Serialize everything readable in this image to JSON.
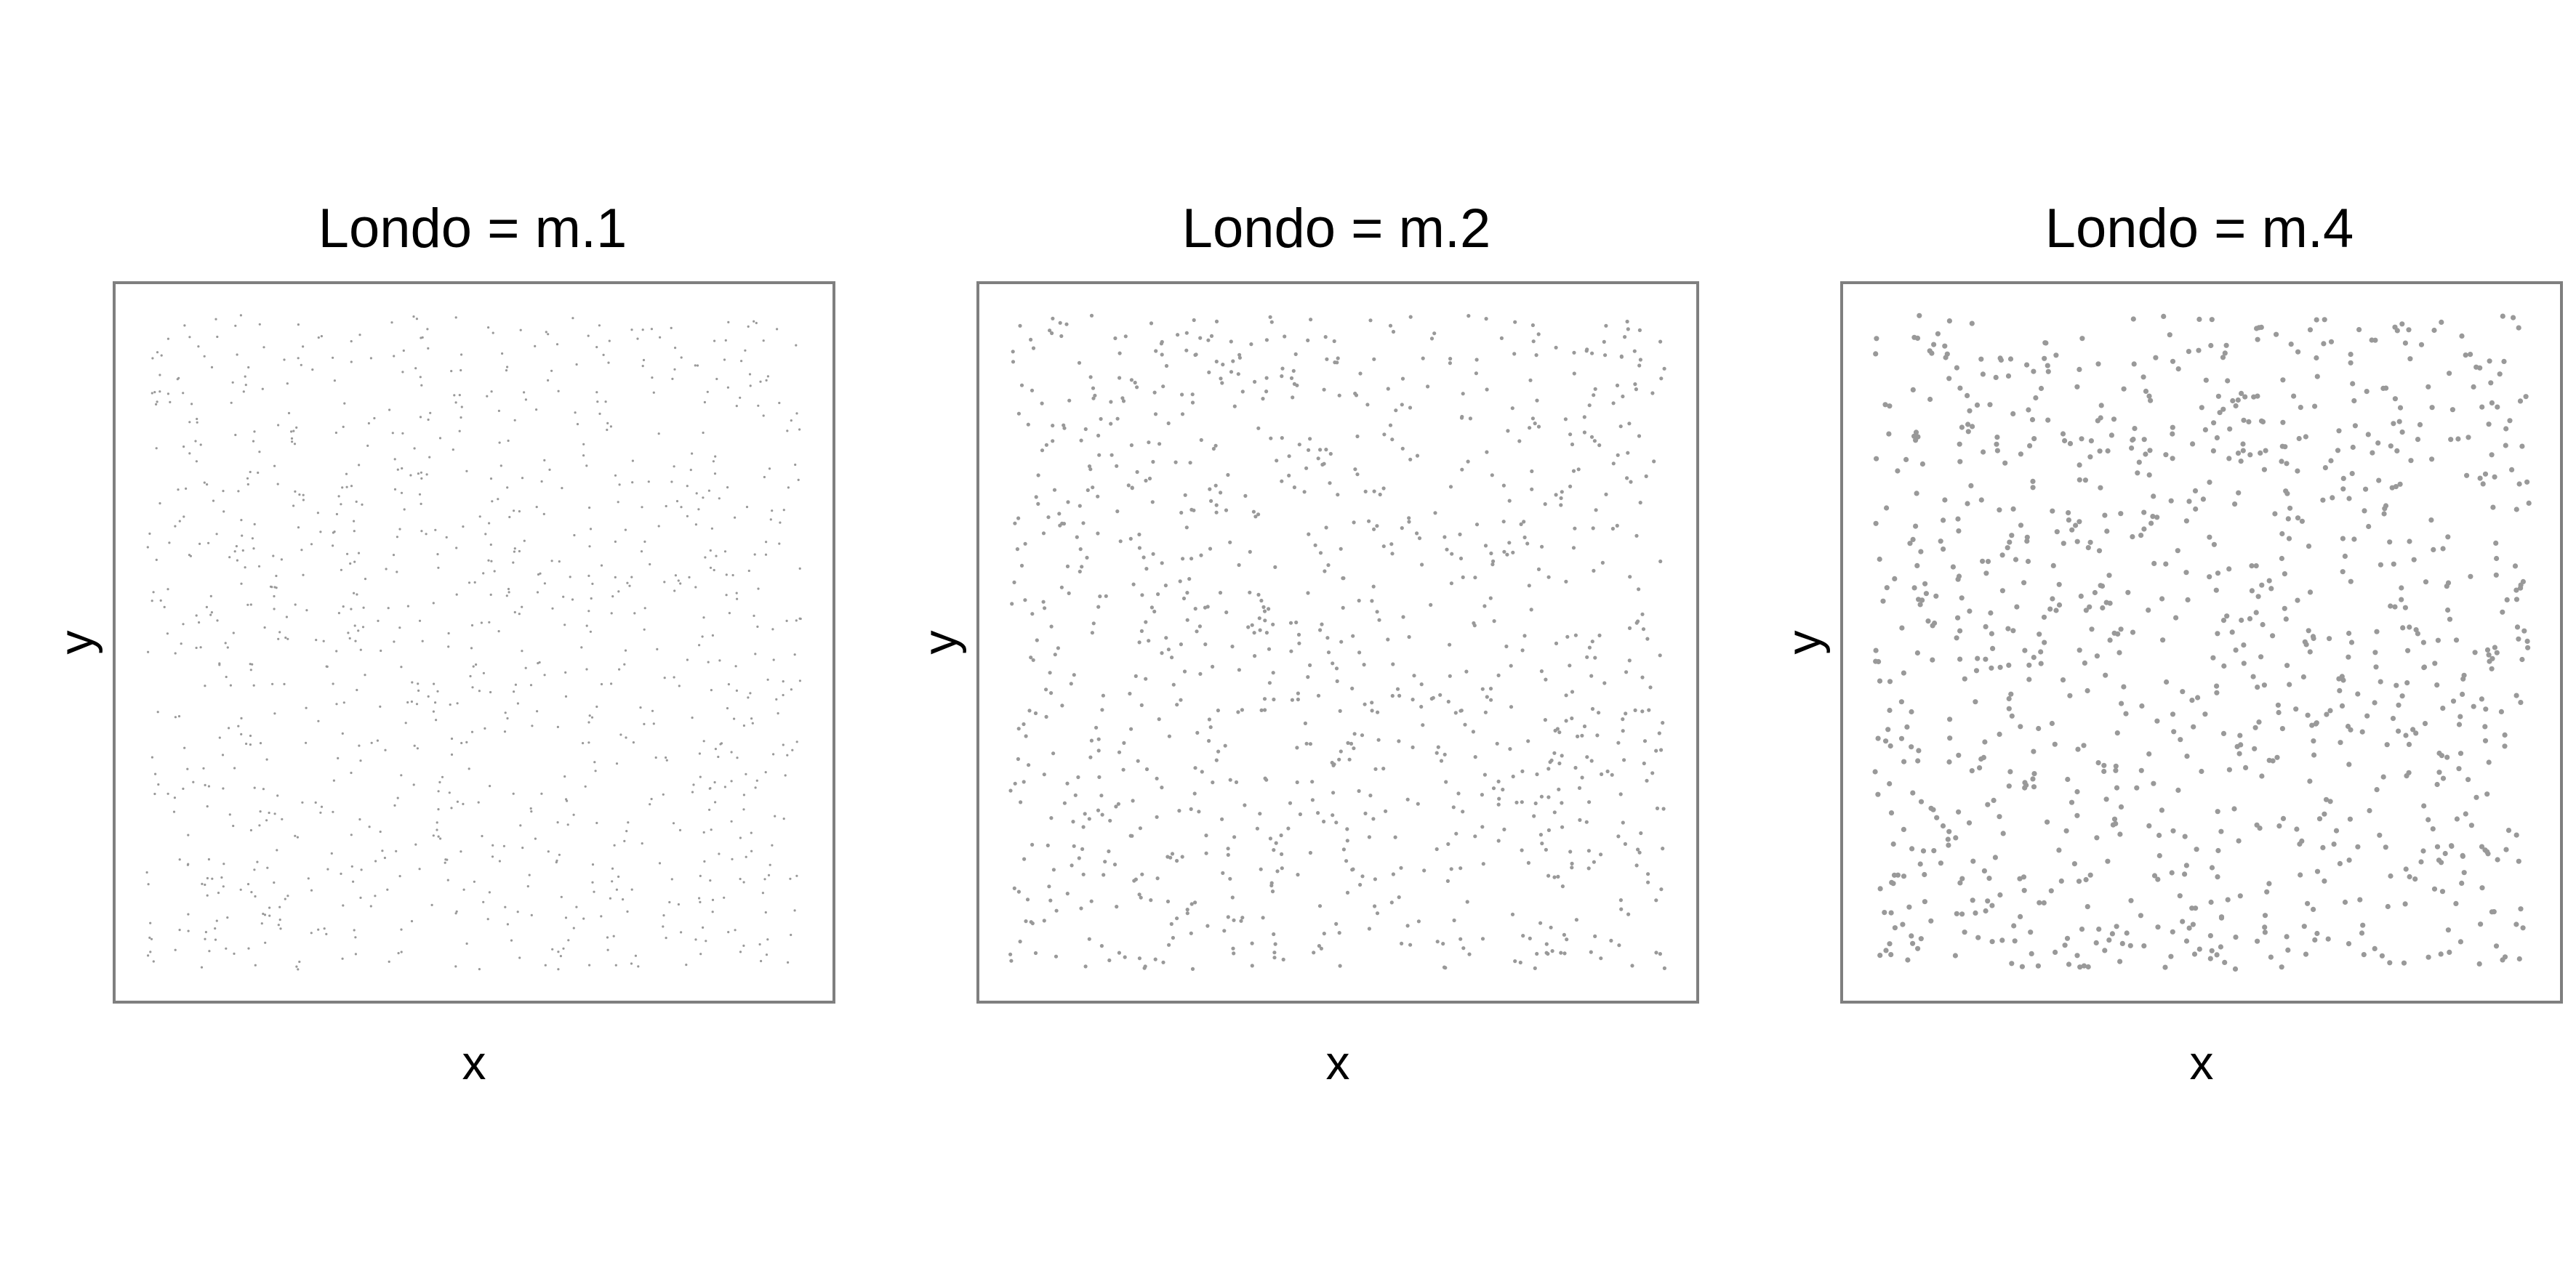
{
  "chart_data": [
    {
      "type": "scatter",
      "title": "Londo = m.1",
      "xlabel": "x",
      "ylabel": "y",
      "point_size_setting": "small",
      "point_color": "#999999",
      "point_count": 1000,
      "seed": 11,
      "xlim": [
        0,
        1
      ],
      "ylim": [
        0,
        1
      ],
      "grid": false,
      "ticks": false,
      "legend": "none"
    },
    {
      "type": "scatter",
      "title": "Londo = m.2",
      "xlabel": "x",
      "ylabel": "y",
      "point_size_setting": "medium",
      "point_color": "#999999",
      "point_count": 1000,
      "seed": 27,
      "xlim": [
        0,
        1
      ],
      "ylim": [
        0,
        1
      ],
      "grid": false,
      "ticks": false,
      "legend": "none"
    },
    {
      "type": "scatter",
      "title": "Londo = m.4",
      "xlabel": "x",
      "ylabel": "y",
      "point_size_setting": "large",
      "point_color": "#999999",
      "point_count": 1000,
      "seed": 53,
      "xlim": [
        0,
        1
      ],
      "ylim": [
        0,
        1
      ],
      "grid": false,
      "ticks": false,
      "legend": "none"
    }
  ]
}
